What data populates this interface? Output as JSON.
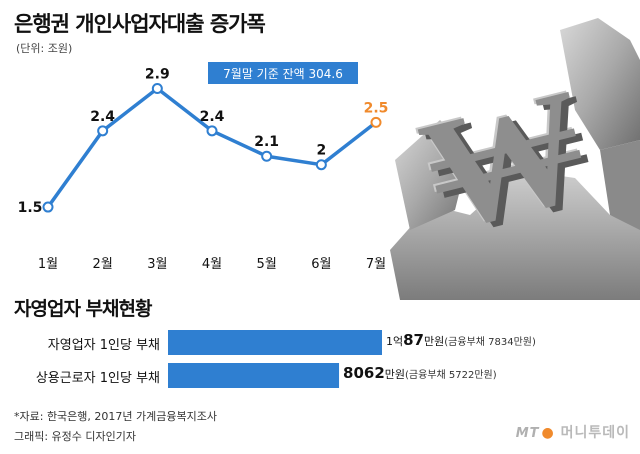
{
  "header": {
    "title": "은행권 개인사업자대출 증가폭",
    "unit": "(단위: 조원)"
  },
  "callout": {
    "text": "7월말 기준 잔액 304.6"
  },
  "decoration": {
    "symbol": "₩",
    "symbol_name": "won-symbol-rock-sculpture"
  },
  "colors": {
    "line": "#2f7fd1",
    "highlight": "#f08a2c",
    "bar": "#2f7fd1"
  },
  "chart_data": [
    {
      "type": "line",
      "categories": [
        "1월",
        "2월",
        "3월",
        "4월",
        "5월",
        "6월",
        "7월"
      ],
      "series": [
        {
          "values": [
            1.5,
            2.4,
            2.9,
            2.4,
            2.1,
            2,
            2.5
          ]
        }
      ],
      "value_labels": [
        "1.5",
        "2.4",
        "2.9",
        "2.4",
        "2.1",
        "2",
        "2.5"
      ],
      "highlight_index": 6,
      "ylim": [
        1.3,
        3.0
      ],
      "grid": false
    },
    {
      "type": "bar",
      "title": "자영업자 부채현황",
      "categories": [
        "자영업자 1인당 부채",
        "상용근로자 1인당 부채"
      ],
      "values": [
        10087,
        8062
      ],
      "value_labels": [
        {
          "pre": "1억",
          "big": "87",
          "unit": "만원",
          "note": "(금융부채 7834만원)"
        },
        {
          "pre": "",
          "big": "8062",
          "unit": "만원",
          "note": "(금융부채 5722만원)"
        }
      ],
      "xlim": [
        0,
        10087
      ]
    }
  ],
  "footer": {
    "source": "*자료: 한국은행, 2017년 가계금융복지조사",
    "credit": "그래픽: 유정수 디자인기자",
    "brand_mt": "MT",
    "brand_name": "머니투데이"
  }
}
